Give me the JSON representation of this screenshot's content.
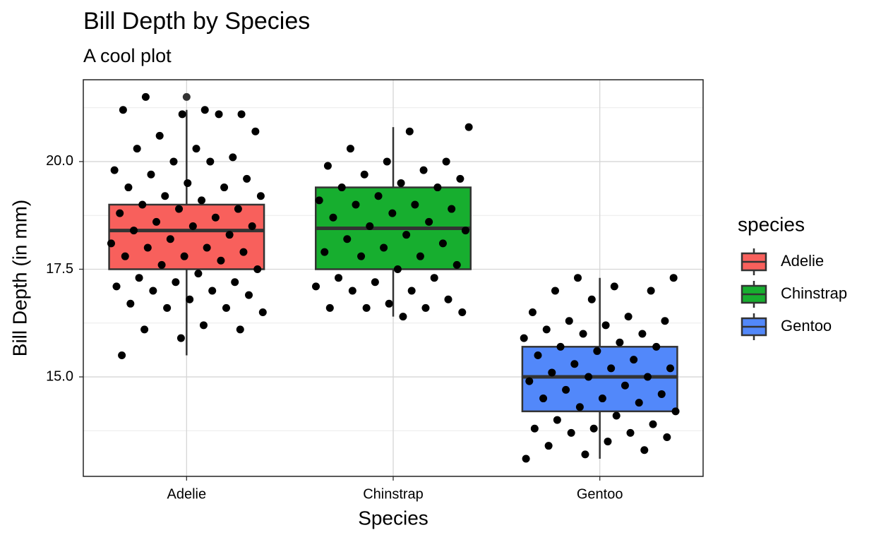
{
  "chart_data": {
    "type": "box",
    "title": "Bill Depth by Species",
    "subtitle": "A cool plot",
    "x_label": "Species",
    "y_label": "Bill Depth (in mm)",
    "legend_title": "species",
    "categories": [
      "Adelie",
      "Chinstrap",
      "Gentoo"
    ],
    "colors": [
      "#f8605c",
      "#17ae2f",
      "#5288fa"
    ],
    "boxes": [
      {
        "whisker_low": 15.5,
        "q1": 17.5,
        "median": 18.4,
        "q3": 19.0,
        "whisker_high": 21.2,
        "outliers": [
          21.5
        ]
      },
      {
        "whisker_low": 16.4,
        "q1": 17.5,
        "median": 18.45,
        "q3": 19.4,
        "whisker_high": 20.8,
        "outliers": []
      },
      {
        "whisker_low": 13.1,
        "q1": 14.2,
        "median": 15.0,
        "q3": 15.7,
        "whisker_high": 17.3,
        "outliers": []
      }
    ],
    "points": [
      [
        21.2,
        21.5,
        21.1,
        21.1,
        21.2,
        21.1,
        20.6,
        20.7,
        20.3,
        20.3,
        20.1,
        20.0,
        19.8,
        20.0,
        19.7,
        19.6,
        19.5,
        19.4,
        19.4,
        19.2,
        19.2,
        19.1,
        19.0,
        18.9,
        18.9,
        18.8,
        18.7,
        18.6,
        18.5,
        18.5,
        18.4,
        18.3,
        18.2,
        18.1,
        18.0,
        18.0,
        17.9,
        17.8,
        17.8,
        17.7,
        17.6,
        17.5,
        17.4,
        17.3,
        17.2,
        17.2,
        17.1,
        17.0,
        17.0,
        16.9,
        16.8,
        16.7,
        16.6,
        16.6,
        16.5,
        16.2,
        16.1,
        16.1,
        15.9,
        15.5
      ],
      [
        20.8,
        20.7,
        20.3,
        20.0,
        20.0,
        19.9,
        19.8,
        19.7,
        19.6,
        19.5,
        19.4,
        19.4,
        19.2,
        19.1,
        19.0,
        19.0,
        18.9,
        18.8,
        18.7,
        18.6,
        18.5,
        18.4,
        18.3,
        18.2,
        18.1,
        18.0,
        17.9,
        17.8,
        17.8,
        17.6,
        17.5,
        17.3,
        17.3,
        17.2,
        17.1,
        17.0,
        17.0,
        16.8,
        16.7,
        16.6,
        16.6,
        16.6,
        16.5,
        16.4
      ],
      [
        17.3,
        17.3,
        17.1,
        17.0,
        17.0,
        16.8,
        16.5,
        16.4,
        16.3,
        16.3,
        16.2,
        16.1,
        16.0,
        16.0,
        15.9,
        15.8,
        15.7,
        15.7,
        15.6,
        15.5,
        15.4,
        15.3,
        15.2,
        15.2,
        15.1,
        15.0,
        15.0,
        14.9,
        14.8,
        14.7,
        14.6,
        14.5,
        14.5,
        14.4,
        14.3,
        14.2,
        14.1,
        14.0,
        13.9,
        13.8,
        13.8,
        13.7,
        13.7,
        13.6,
        13.5,
        13.4,
        13.3,
        13.2,
        13.1
      ]
    ],
    "ylim": [
      12.69,
      21.9
    ],
    "yticks": [
      {
        "value": 15,
        "label": "15.0"
      },
      17.5,
      {
        "value": 20,
        "label": "20.0"
      }
    ],
    "y_minor_ticks": [
      13.75,
      16.25,
      18.75,
      21.25
    ],
    "grid": true
  }
}
